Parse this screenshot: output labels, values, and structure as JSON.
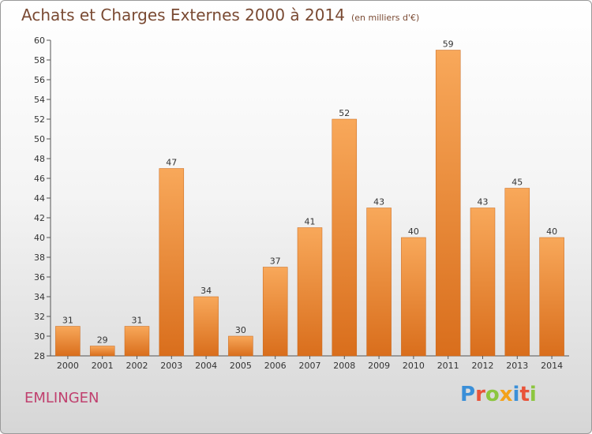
{
  "chart_data": {
    "type": "bar",
    "title": "Achats et Charges Externes 2000 à 2014",
    "subtitle": "(en milliers d'€)",
    "xlabel": "",
    "ylabel": "",
    "categories": [
      "2000",
      "2001",
      "2002",
      "2003",
      "2004",
      "2005",
      "2006",
      "2007",
      "2008",
      "2009",
      "2010",
      "2011",
      "2012",
      "2013",
      "2014"
    ],
    "values": [
      31,
      29,
      31,
      47,
      34,
      30,
      37,
      41,
      52,
      43,
      40,
      59,
      43,
      45,
      40
    ],
    "ylim": [
      28,
      60
    ],
    "yticks": [
      28,
      30,
      32,
      34,
      36,
      38,
      40,
      42,
      44,
      46,
      48,
      50,
      52,
      54,
      56,
      58,
      60
    ],
    "grid": false,
    "legend": "none",
    "bar_color": "#f0913a",
    "bar_color_dark": "#d96e1c"
  },
  "footer": {
    "place_name": "EMLINGEN",
    "logo_letters": [
      "P",
      "r",
      "o",
      "x",
      "i",
      "t",
      "i"
    ],
    "logo_colors": [
      "#3a8fd8",
      "#e9533a",
      "#8cc63f",
      "#f4a21a",
      "#3a8fd8",
      "#e9533a",
      "#8cc63f"
    ]
  },
  "colors": {
    "title": "#7a4a33",
    "place": "#c0406e"
  }
}
